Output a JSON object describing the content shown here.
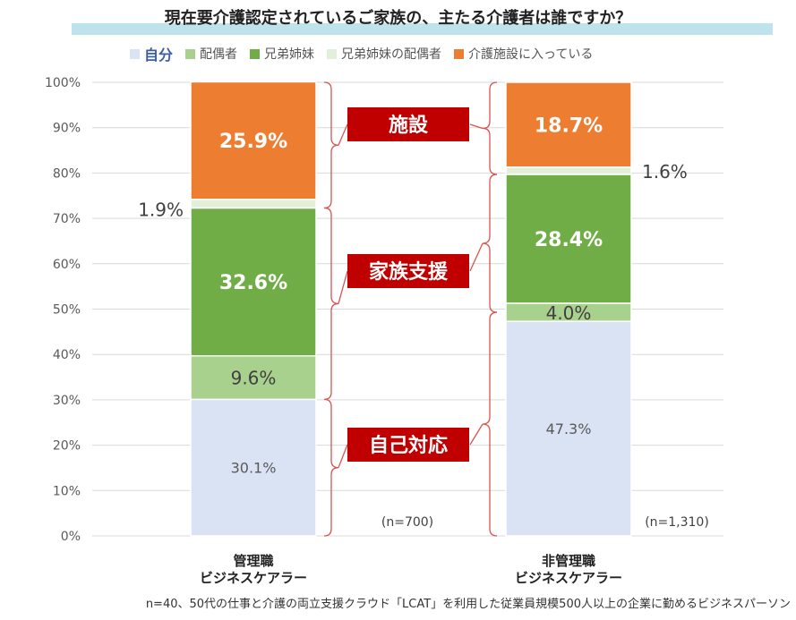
{
  "title": "現在要介護認定されているご家族の、主たる介護者は誰ですか？",
  "footnote": "n=40、50代の仕事と介護の両立支援クラウド「LCAT」を利用した従業員規模500人以上の企業に勤めるビジネスパーソン",
  "chart_data": {
    "type": "bar",
    "stacked": true,
    "ylim": [
      0,
      100
    ],
    "yticks": [
      "0%",
      "10%",
      "20%",
      "30%",
      "40%",
      "50%",
      "60%",
      "70%",
      "80%",
      "90%",
      "100%"
    ],
    "categories": [
      {
        "line1": "管理職",
        "line2": "ビジネスケアラー",
        "n": "(n=700)"
      },
      {
        "line1": "非管理職",
        "line2": "ビジネスケアラー",
        "n": "(n=1,310)"
      }
    ],
    "series": [
      {
        "name": "自分",
        "color": "#dae3f3",
        "values": [
          30.1,
          47.3
        ],
        "labels": [
          "30.1%",
          "47.3%"
        ]
      },
      {
        "name": "配偶者",
        "color": "#a9d18e",
        "values": [
          9.6,
          4.0
        ],
        "labels": [
          "9.6%",
          "4.0%"
        ]
      },
      {
        "name": "兄弟姉妹",
        "color": "#70ad47",
        "values": [
          32.6,
          28.4
        ],
        "labels": [
          "32.6%",
          "28.4%"
        ]
      },
      {
        "name": "兄弟姉妹の配偶者",
        "color": "#e2f0d9",
        "values": [
          1.9,
          1.6
        ],
        "labels": [
          "1.9%",
          "1.6%"
        ]
      },
      {
        "name": "介護施設に入っている",
        "color": "#ed7d31",
        "values": [
          25.9,
          18.7
        ],
        "labels": [
          "25.9%",
          "18.7%"
        ]
      }
    ],
    "annotations": [
      {
        "text": "施設",
        "color": "#c00000"
      },
      {
        "text": "家族支援",
        "color": "#c00000"
      },
      {
        "text": "自己対応",
        "color": "#c00000"
      }
    ]
  }
}
